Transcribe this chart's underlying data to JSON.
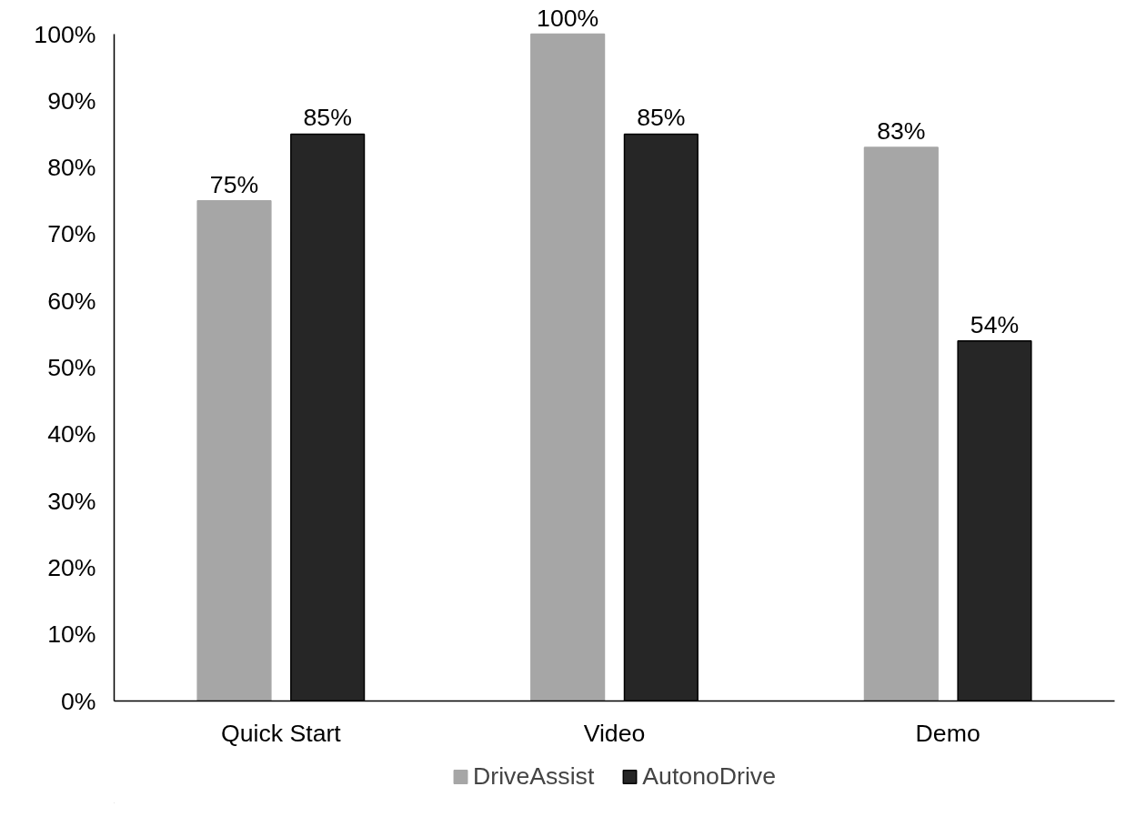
{
  "chart_data": {
    "type": "bar",
    "categories": [
      "Quick Start",
      "Video",
      "Demo"
    ],
    "series": [
      {
        "name": "DriveAssist",
        "color": "#a6a6a6",
        "values": [
          75,
          100,
          83
        ],
        "value_labels": [
          "75%",
          "100%",
          "83%"
        ]
      },
      {
        "name": "AutonoDrive",
        "color": "#262626",
        "values": [
          85,
          85,
          54
        ],
        "value_labels": [
          "85%",
          "85%",
          "54%"
        ]
      }
    ],
    "ylim": [
      0,
      100
    ],
    "yticks": [
      {
        "value": 0,
        "label": "0%"
      },
      {
        "value": 10,
        "label": "10%"
      },
      {
        "value": 20,
        "label": "20%"
      },
      {
        "value": 30,
        "label": "30%"
      },
      {
        "value": 40,
        "label": "40%"
      },
      {
        "value": 50,
        "label": "50%"
      },
      {
        "value": 60,
        "label": "60%"
      },
      {
        "value": 70,
        "label": "70%"
      },
      {
        "value": 80,
        "label": "80%"
      },
      {
        "value": 90,
        "label": "90%"
      },
      {
        "value": 100,
        "label": "100%"
      }
    ],
    "grid": false,
    "legend": "bottom"
  }
}
